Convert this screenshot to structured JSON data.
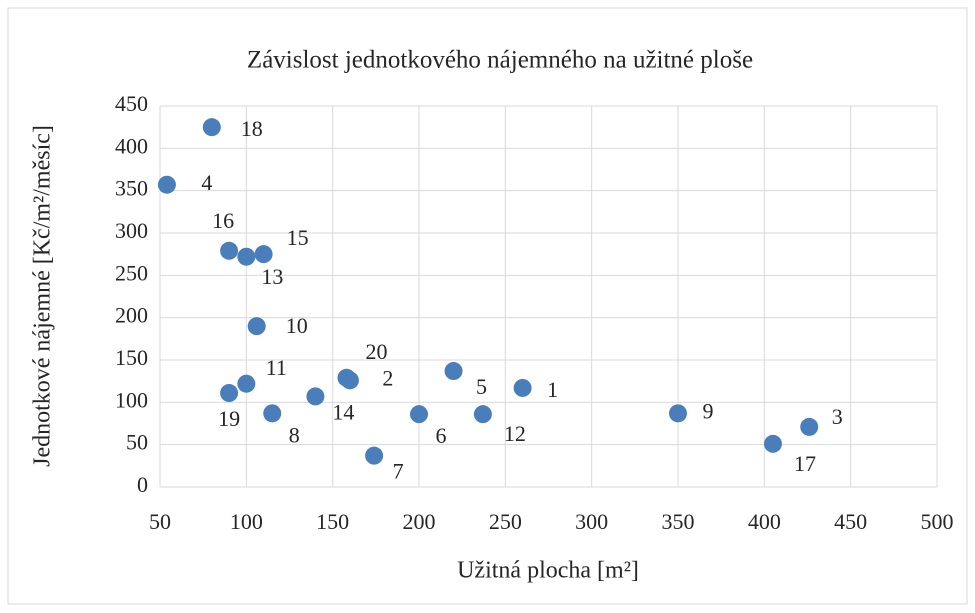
{
  "chart_data": {
    "type": "scatter",
    "title": "Závislost jednotkového nájemného na užitné ploše",
    "x_label": "Užitná plocha [m²]",
    "y_label": "Jednotkové nájemné [Kč/m²/měsíc]",
    "color": "#4a7ebb",
    "labels": [
      "1",
      "2",
      "3",
      "4",
      "5",
      "6",
      "7",
      "8",
      "9",
      "10",
      "11",
      "12",
      "13",
      "14",
      "15",
      "16",
      "17",
      "18",
      "19",
      "20"
    ],
    "x": [
      260,
      160,
      426,
      54,
      220,
      200,
      174,
      115,
      350,
      106,
      100,
      237,
      100,
      140,
      110,
      90,
      405,
      80,
      90,
      158
    ],
    "values": [
      117,
      126,
      71,
      357,
      137,
      86,
      37,
      87,
      87,
      190,
      122,
      86,
      272,
      107,
      275,
      279,
      51,
      425,
      111,
      129
    ],
    "xlim": [
      50,
      500
    ],
    "xticks": [
      50,
      100,
      150,
      200,
      250,
      300,
      350,
      400,
      450,
      500
    ],
    "ylim": [
      0,
      450
    ],
    "yticks": [
      0,
      50,
      100,
      150,
      200,
      250,
      300,
      350,
      400,
      450
    ],
    "grid": true
  }
}
